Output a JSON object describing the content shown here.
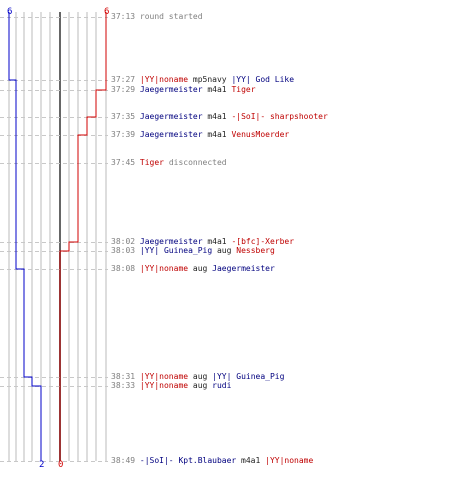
{
  "scores": {
    "blue_start": "6",
    "red_start": "6",
    "blue_end": "2",
    "red_end": "0"
  },
  "colors": {
    "blue": "#0000c8",
    "red": "#d20000",
    "grid": "#bbbbbb",
    "center": "#666666",
    "dash": "#c8c8c8"
  },
  "events": [
    {
      "time": "37:13",
      "tokens": [
        {
          "text": "round started",
          "color": "grey"
        }
      ]
    },
    {
      "time": "37:27",
      "tokens": [
        {
          "text": "|YY|noname",
          "color": "red"
        },
        {
          "text": " mp5navy ",
          "color": "black"
        },
        {
          "text": "|YY| God Like",
          "color": "blue"
        }
      ]
    },
    {
      "time": "37:29",
      "tokens": [
        {
          "text": "Jaegermeister",
          "color": "blue"
        },
        {
          "text": " m4a1 ",
          "color": "black"
        },
        {
          "text": "Tiger",
          "color": "red"
        }
      ]
    },
    {
      "time": "37:35",
      "tokens": [
        {
          "text": "Jaegermeister",
          "color": "blue"
        },
        {
          "text": " m4a1 ",
          "color": "black"
        },
        {
          "text": "-|SoI|- sharpshooter",
          "color": "red"
        }
      ]
    },
    {
      "time": "37:39",
      "tokens": [
        {
          "text": "Jaegermeister",
          "color": "blue"
        },
        {
          "text": " m4a1 ",
          "color": "black"
        },
        {
          "text": "VenusMoerder",
          "color": "red"
        }
      ]
    },
    {
      "time": "37:45",
      "tokens": [
        {
          "text": "Tiger",
          "color": "red"
        },
        {
          "text": " disconnected",
          "color": "grey"
        }
      ]
    },
    {
      "time": "38:02",
      "tokens": [
        {
          "text": "Jaegermeister",
          "color": "blue"
        },
        {
          "text": " m4a1 ",
          "color": "black"
        },
        {
          "text": "-[bfc]-Xerber",
          "color": "red"
        }
      ]
    },
    {
      "time": "38:03",
      "tokens": [
        {
          "text": "|YY| Guinea_Pig",
          "color": "blue"
        },
        {
          "text": " aug ",
          "color": "black"
        },
        {
          "text": "Nessberg",
          "color": "red"
        }
      ]
    },
    {
      "time": "38:08",
      "tokens": [
        {
          "text": "|YY|noname",
          "color": "red"
        },
        {
          "text": " aug ",
          "color": "black"
        },
        {
          "text": "Jaegermeister",
          "color": "blue"
        }
      ]
    },
    {
      "time": "38:31",
      "tokens": [
        {
          "text": "|YY|noname",
          "color": "red"
        },
        {
          "text": " aug ",
          "color": "black"
        },
        {
          "text": "|YY| Guinea_Pig",
          "color": "blue"
        }
      ]
    },
    {
      "time": "38:33",
      "tokens": [
        {
          "text": "|YY|noname",
          "color": "red"
        },
        {
          "text": " aug ",
          "color": "black"
        },
        {
          "text": "rudi",
          "color": "blue"
        }
      ]
    },
    {
      "time": "38:49",
      "tokens": [
        {
          "text": "-|SoI|- Kpt.Blaubaer",
          "color": "blue"
        },
        {
          "text": " m4a1 ",
          "color": "black"
        },
        {
          "text": "|YY|noname",
          "color": "red"
        }
      ]
    }
  ]
}
